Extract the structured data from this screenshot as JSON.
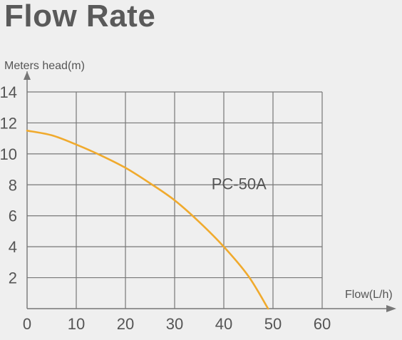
{
  "page": {
    "title": "Flow Rate"
  },
  "chart_data": {
    "type": "line",
    "ylabel": "Meters head(m)",
    "xlabel": "Flow(L/h)",
    "xlim": [
      0,
      60
    ],
    "ylim": [
      0,
      14
    ],
    "x_ticks": [
      0,
      10,
      20,
      30,
      40,
      50,
      60
    ],
    "y_ticks": [
      2,
      4,
      6,
      8,
      10,
      12,
      14
    ],
    "grid": true,
    "series": [
      {
        "name": "PC-50A",
        "color": "#f0aa2d",
        "x": [
          0,
          5,
          10,
          15,
          20,
          25,
          30,
          35,
          40,
          45,
          49
        ],
        "y": [
          11.5,
          11.2,
          10.6,
          9.9,
          9.1,
          8.1,
          7.0,
          5.6,
          4.0,
          2.1,
          0
        ]
      }
    ]
  }
}
